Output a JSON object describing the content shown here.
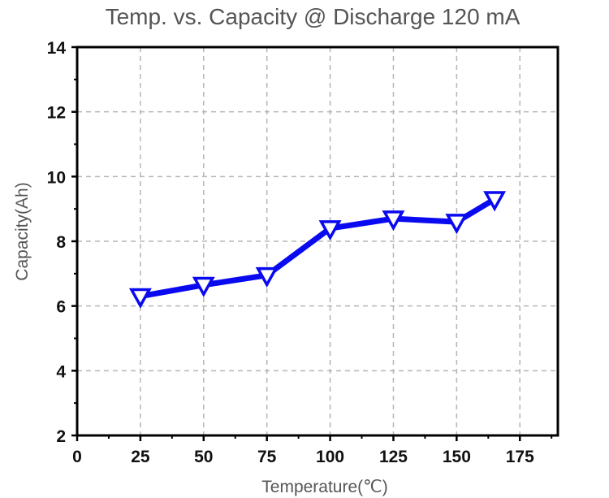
{
  "chart_data": {
    "type": "line",
    "title": "Temp. vs. Capacity @ Discharge 120 mA",
    "xlabel": "Temperature(℃)",
    "ylabel": "Capacity(Ah)",
    "xlim": [
      0,
      190
    ],
    "ylim": [
      2,
      14
    ],
    "xticks": [
      0,
      25,
      50,
      75,
      100,
      125,
      150,
      175
    ],
    "yticks": [
      2,
      4,
      6,
      8,
      10,
      12,
      14
    ],
    "grid": true,
    "marker": "down-triangle",
    "series": [
      {
        "name": "Capacity",
        "color": "#0a0af0",
        "x": [
          25,
          50,
          75,
          100,
          125,
          150,
          165
        ],
        "y": [
          6.3,
          6.65,
          6.95,
          8.4,
          8.7,
          8.6,
          9.3
        ]
      }
    ]
  }
}
